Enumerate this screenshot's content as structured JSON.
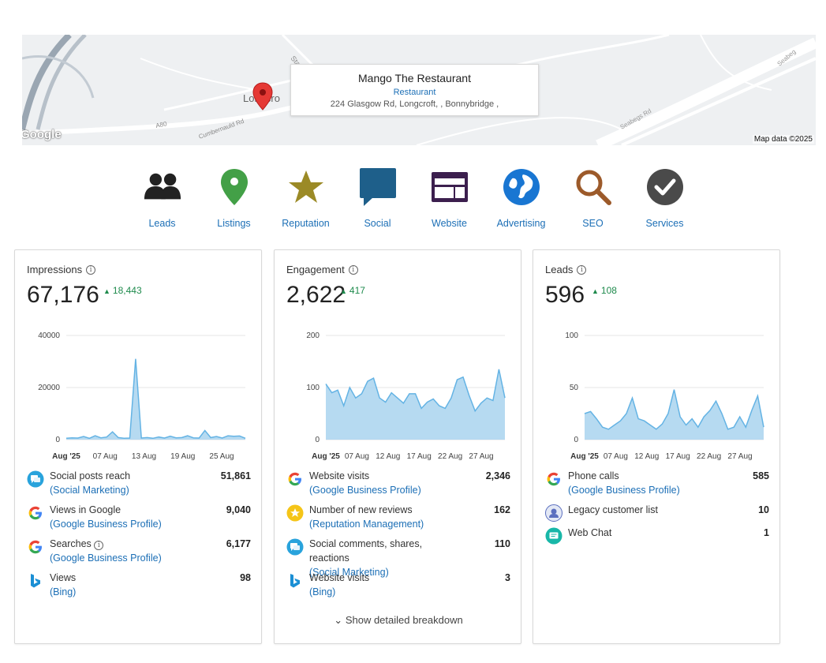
{
  "map": {
    "place_name": "Mango The Restaurant",
    "category": "Restaurant",
    "address": "224 Glasgow Rd, Longcroft, , Bonnybridge ,",
    "google_logo": "Google",
    "attribution": "Map data ©2025",
    "street_labels": [
      "Station Ro",
      "Longcro",
      "Cumbernauld Rd",
      "Seabegs Rd",
      "Seabeg",
      "A80"
    ]
  },
  "nav": [
    {
      "label": "Leads",
      "icon": "people-icon"
    },
    {
      "label": "Listings",
      "icon": "location-pin-icon"
    },
    {
      "label": "Reputation",
      "icon": "star-icon"
    },
    {
      "label": "Social",
      "icon": "chat-bubble-icon"
    },
    {
      "label": "Website",
      "icon": "website-icon"
    },
    {
      "label": "Advertising",
      "icon": "globe-icon"
    },
    {
      "label": "SEO",
      "icon": "magnifier-icon"
    },
    {
      "label": "Services",
      "icon": "checkmark-icon"
    }
  ],
  "cards": [
    {
      "title": "Impressions",
      "value": "67,176",
      "delta": "18,443",
      "chart_data": {
        "type": "area",
        "ylim": [
          0,
          40000
        ],
        "yticks": [
          "0",
          "20000",
          "40000"
        ],
        "xticks": [
          "Aug '25",
          "07 Aug",
          "13 Aug",
          "19 Aug",
          "25 Aug"
        ],
        "values": [
          500,
          700,
          600,
          1200,
          500,
          1500,
          700,
          1000,
          3000,
          800,
          500,
          600,
          31000,
          600,
          800,
          500,
          1000,
          600,
          1300,
          700,
          800,
          1500,
          700,
          600,
          3500,
          800,
          1200,
          600,
          1500,
          1300,
          1400,
          500
        ]
      },
      "rows": [
        {
          "label": "Social posts reach",
          "sub": "(Social Marketing)",
          "value": "51,861",
          "icon": "social-marketing-icon"
        },
        {
          "label": "Views in Google",
          "sub": "(Google Business Profile)",
          "value": "9,040",
          "icon": "google-icon"
        },
        {
          "label": "Searches",
          "sub": "(Google Business Profile)",
          "value": "6,177",
          "icon": "google-icon",
          "info": "i"
        },
        {
          "label": "Views",
          "sub": "(Bing)",
          "value": "98",
          "icon": "bing-icon"
        }
      ]
    },
    {
      "title": "Engagement",
      "value": "2,622",
      "delta": "417",
      "chart_data": {
        "type": "area",
        "ylim": [
          0,
          200
        ],
        "yticks": [
          "0",
          "100",
          "200"
        ],
        "xticks": [
          "Aug '25",
          "07 Aug",
          "12 Aug",
          "17 Aug",
          "22 Aug",
          "27 Aug"
        ],
        "values": [
          107,
          90,
          95,
          65,
          100,
          80,
          88,
          112,
          118,
          80,
          72,
          90,
          80,
          70,
          88,
          88,
          60,
          72,
          78,
          65,
          60,
          80,
          115,
          120,
          85,
          55,
          70,
          80,
          75,
          135,
          80
        ]
      },
      "rows": [
        {
          "label": "Website visits",
          "sub": "(Google Business Profile)",
          "value": "2,346",
          "icon": "google-icon"
        },
        {
          "label": "Number of new reviews",
          "sub": "(Reputation Management)",
          "value": "162",
          "icon": "reputation-icon"
        },
        {
          "label": "Social comments, shares, reactions",
          "sub": "(Social Marketing)",
          "value": "110",
          "icon": "social-marketing-icon"
        },
        {
          "label": "Website visits",
          "sub": "(Bing)",
          "value": "3",
          "icon": "bing-icon"
        }
      ],
      "breakdown": "Show detailed breakdown"
    },
    {
      "title": "Leads",
      "value": "596",
      "delta": "108",
      "chart_data": {
        "type": "area",
        "ylim": [
          0,
          100
        ],
        "yticks": [
          "0",
          "50",
          "100"
        ],
        "xticks": [
          "Aug '25",
          "07 Aug",
          "12 Aug",
          "17 Aug",
          "22 Aug",
          "27 Aug"
        ],
        "values": [
          25,
          27,
          20,
          12,
          10,
          14,
          18,
          25,
          40,
          20,
          18,
          14,
          10,
          15,
          25,
          48,
          22,
          14,
          20,
          12,
          22,
          28,
          37,
          25,
          10,
          12,
          22,
          12,
          28,
          42,
          12
        ]
      },
      "rows": [
        {
          "label": "Phone calls",
          "sub": "(Google Business Profile)",
          "value": "585",
          "icon": "google-icon"
        },
        {
          "label": "Legacy customer list",
          "sub": "",
          "value": "10",
          "icon": "customer-list-icon"
        },
        {
          "label": "Web Chat",
          "sub": "",
          "value": "1",
          "icon": "web-chat-icon"
        }
      ]
    }
  ]
}
